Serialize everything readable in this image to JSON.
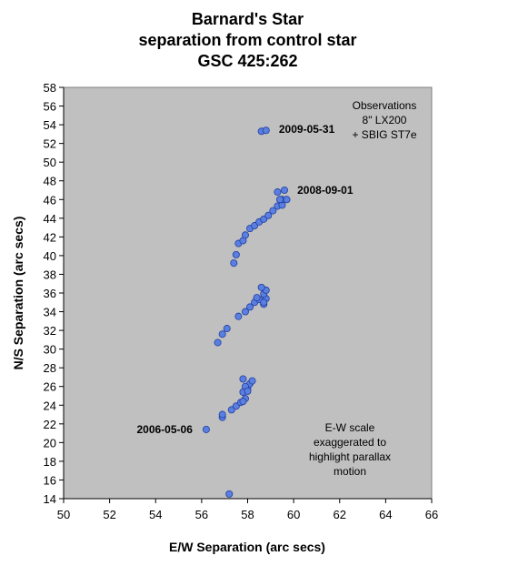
{
  "chart_data": {
    "type": "scatter",
    "title_lines": [
      "Barnard's Star",
      "separation from control star",
      "GSC 425:262"
    ],
    "xlabel": "E/W Separation (arc secs)",
    "ylabel": "N/S Separation (arc secs)",
    "xlim": [
      50,
      66
    ],
    "ylim": [
      14,
      58
    ],
    "xticks": [
      "50",
      "52",
      "54",
      "56",
      "58",
      "60",
      "62",
      "64",
      "66"
    ],
    "yticks": [
      "14",
      "16",
      "18",
      "20",
      "22",
      "24",
      "26",
      "28",
      "30",
      "32",
      "34",
      "36",
      "38",
      "40",
      "42",
      "44",
      "46",
      "48",
      "50",
      "52",
      "54",
      "56",
      "58"
    ],
    "grid": false,
    "plot_background": "#c0c0c0",
    "marker_color": "#5b7fe0",
    "marker_edge": "#1f3ea0",
    "annotations": {
      "observations": [
        "Observations",
        "8\" LX200",
        "+ SBIG ST7e"
      ],
      "scale_note": [
        "E-W scale",
        "exaggerated to",
        "highlight parallax",
        "motion"
      ]
    },
    "point_labels": [
      {
        "text": "2009-05-31",
        "x": 59.2,
        "y": 53.5
      },
      {
        "text": "2008-09-01",
        "x": 60.0,
        "y": 47.0
      },
      {
        "text": "2006-05-06",
        "x": 56.0,
        "y": 21.4
      }
    ],
    "series": [
      {
        "x": [
          57.2,
          56.2,
          56.9,
          56.9,
          57.3,
          57.5,
          57.7,
          57.9,
          57.8,
          57.8,
          58.0,
          58.1,
          58.2,
          57.8,
          57.9,
          58.0,
          56.7,
          56.9,
          57.1,
          57.6,
          57.9,
          58.1,
          58.3,
          58.5,
          58.7,
          58.8,
          58.7,
          58.8,
          58.6,
          58.4,
          58.7,
          57.4,
          57.5,
          57.6,
          57.8,
          57.9,
          58.1,
          58.3,
          58.5,
          58.7,
          58.9,
          59.1,
          59.3,
          59.5,
          59.5,
          59.7,
          59.4,
          59.3,
          59.6,
          58.6,
          58.8
        ],
        "y": [
          14.5,
          21.4,
          22.7,
          23.0,
          23.5,
          23.9,
          24.3,
          24.7,
          24.4,
          25.4,
          25.8,
          26.3,
          26.6,
          26.8,
          26.0,
          25.5,
          30.7,
          31.6,
          32.2,
          33.5,
          34.0,
          34.5,
          35.0,
          35.3,
          34.8,
          35.4,
          35.9,
          36.3,
          36.6,
          35.5,
          35.0,
          39.2,
          40.1,
          41.3,
          41.6,
          42.2,
          42.9,
          43.2,
          43.6,
          43.9,
          44.3,
          44.8,
          45.3,
          45.4,
          46.0,
          46.0,
          46.0,
          46.8,
          47.0,
          53.3,
          53.4
        ]
      }
    ]
  }
}
